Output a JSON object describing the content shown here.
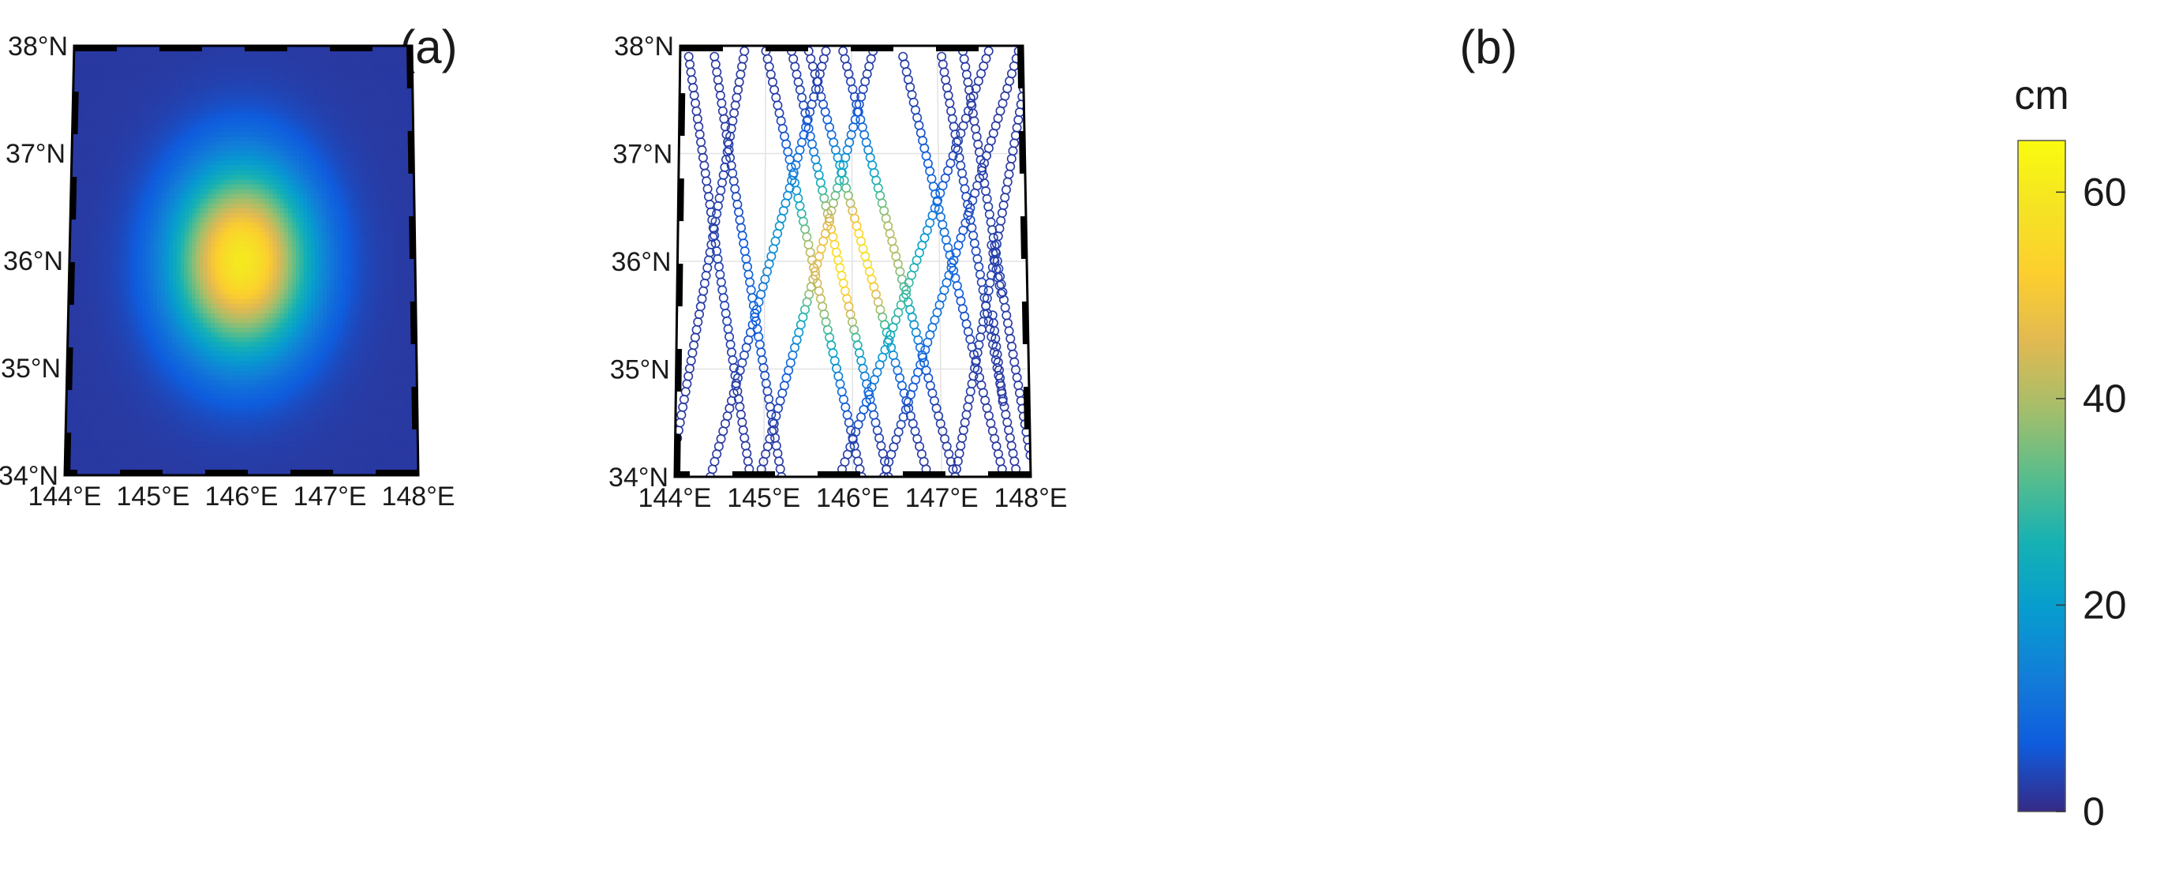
{
  "chart_data": [
    {
      "type": "heatmap",
      "title": "(a)",
      "xlabel": "",
      "ylabel": "",
      "xlim": [
        144,
        148
      ],
      "ylim": [
        34,
        38
      ],
      "xticks": [
        144,
        145,
        146,
        147,
        148
      ],
      "yticks": [
        34,
        35,
        36,
        37,
        38
      ],
      "xtick_labels": [
        "144°E",
        "145°E",
        "146°E",
        "147°E",
        "148°E"
      ],
      "ytick_labels": [
        "34°N",
        "35°N",
        "36°N",
        "37°N",
        "38°N"
      ],
      "grid": false,
      "field": {
        "shape": "gaussian",
        "center_lon": 146.0,
        "center_lat": 36.0,
        "peak": 60,
        "sigma_lon": 0.55,
        "sigma_lat": 0.6,
        "background": 2
      }
    },
    {
      "type": "scatter",
      "title": "(b)",
      "xlabel": "",
      "ylabel": "",
      "xlim": [
        144,
        148
      ],
      "ylim": [
        34,
        38
      ],
      "xticks": [
        144,
        145,
        146,
        147,
        148
      ],
      "yticks": [
        34,
        35,
        36,
        37,
        38
      ],
      "xtick_labels": [
        "144°E",
        "145°E",
        "146°E",
        "147°E",
        "148°E"
      ],
      "ytick_labels": [
        "34°N",
        "35°N",
        "36°N",
        "37°N",
        "38°N"
      ],
      "grid": true,
      "marker": "open-circle",
      "tracks": [
        {
          "start": [
            144.1,
            37.9
          ],
          "end": [
            144.85,
            34.0
          ]
        },
        {
          "start": [
            144.4,
            37.9
          ],
          "end": [
            145.2,
            34.0
          ]
        },
        {
          "start": [
            145.0,
            37.95
          ],
          "end": [
            146.1,
            34.0
          ]
        },
        {
          "start": [
            145.3,
            37.95
          ],
          "end": [
            146.4,
            34.0
          ]
        },
        {
          "start": [
            145.5,
            37.95
          ],
          "end": [
            146.85,
            34.0
          ]
        },
        {
          "start": [
            145.9,
            37.95
          ],
          "end": [
            147.15,
            34.0
          ]
        },
        {
          "start": [
            146.6,
            37.9
          ],
          "end": [
            147.7,
            34.0
          ]
        },
        {
          "start": [
            147.05,
            37.9
          ],
          "end": [
            147.85,
            34.0
          ]
        },
        {
          "start": [
            147.3,
            37.95
          ],
          "end": [
            148.0,
            34.2
          ]
        },
        {
          "start": [
            143.95,
            34.0
          ],
          "end": [
            144.75,
            37.95
          ]
        },
        {
          "start": [
            144.4,
            34.0
          ],
          "end": [
            145.7,
            37.95
          ]
        },
        {
          "start": [
            144.95,
            34.0
          ],
          "end": [
            146.25,
            37.95
          ]
        },
        {
          "start": [
            145.85,
            34.0
          ],
          "end": [
            147.6,
            37.95
          ]
        },
        {
          "start": [
            146.35,
            34.0
          ],
          "end": [
            147.95,
            37.95
          ]
        },
        {
          "start": [
            147.15,
            34.0
          ],
          "end": [
            148.0,
            37.6
          ]
        }
      ],
      "partial_tracks": [
        {
          "start": [
            147.6,
            36.15
          ],
          "end": [
            147.7,
            35.7
          ]
        },
        {
          "start": [
            147.6,
            35.5
          ],
          "end": [
            147.7,
            34.7
          ]
        }
      ],
      "colorbar": {
        "label": "cm",
        "min": 0,
        "max": 65,
        "ticks": [
          0,
          20,
          40,
          60
        ],
        "tick_labels": [
          "0",
          "20",
          "40",
          "60"
        ],
        "colormap": "parula"
      }
    }
  ]
}
